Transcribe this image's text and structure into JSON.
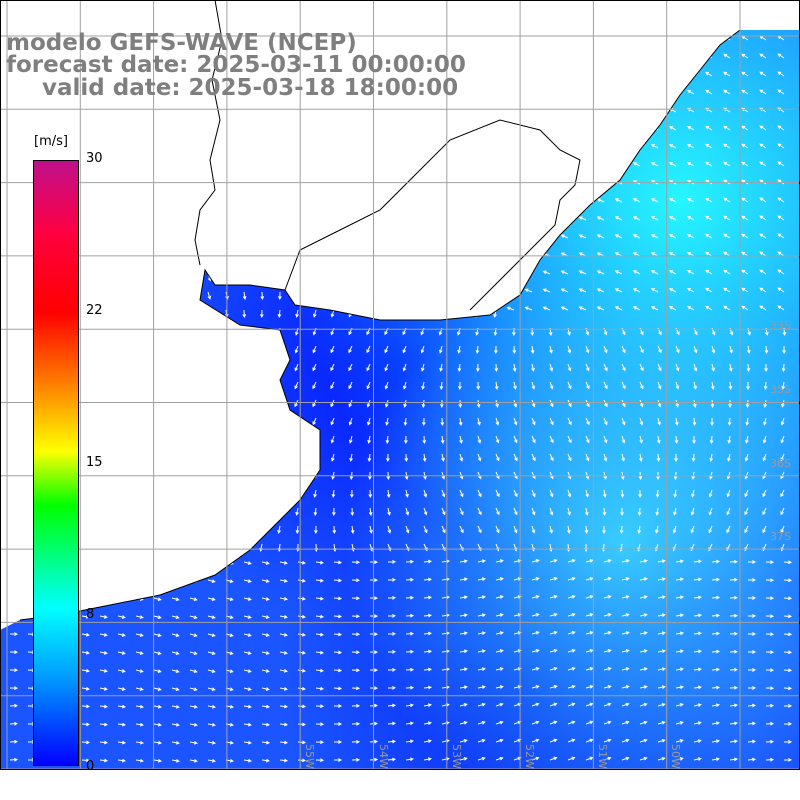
{
  "title": {
    "line1": "modelo GEFS-WAVE (NCEP)",
    "line2": "forecast date: 2025-03-11 00:00:00",
    "line3": "valid date: 2025-03-18 18:00:00"
  },
  "colorbar": {
    "unit": "[m/s]",
    "ticks": [
      "30",
      "22",
      "15",
      "8",
      "0"
    ],
    "colors": [
      "#0000ff",
      "#00a0ff",
      "#00ffff",
      "#00ff00",
      "#ffff00",
      "#ff8000",
      "#ff0000",
      "#c0108c"
    ]
  },
  "grid": {
    "lat_labels": [
      "33S",
      "35S",
      "36S",
      "37S"
    ],
    "lon_labels": [
      "55W",
      "54W",
      "53W",
      "52W",
      "51W",
      "50W"
    ]
  },
  "map": {
    "land_color": "#ffffff",
    "coast_color": "#000000",
    "grid_color": "#a0a0a0"
  }
}
